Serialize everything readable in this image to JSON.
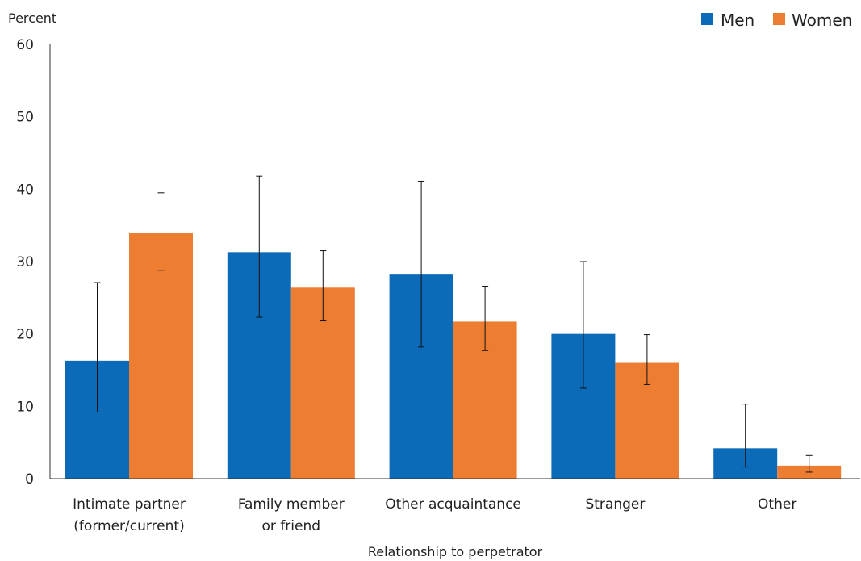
{
  "chart_data": {
    "type": "bar",
    "ylabel": "Percent",
    "xlabel": "Relationship to perpetrator",
    "ylim": [
      0,
      60
    ],
    "yticks": [
      0,
      10,
      20,
      30,
      40,
      50,
      60
    ],
    "grid": false,
    "legend_position": "top-right",
    "categories": [
      [
        "Intimate partner",
        "(former/current)"
      ],
      [
        "Family member",
        "or friend"
      ],
      [
        "Other acquaintance"
      ],
      [
        "Stranger"
      ],
      [
        "Other"
      ]
    ],
    "series": [
      {
        "name": "Men",
        "color": "#0c6bb8",
        "values": [
          16.3,
          31.3,
          28.2,
          20.0,
          4.2
        ],
        "error_low": [
          9.2,
          22.3,
          18.2,
          12.5,
          1.6
        ],
        "error_high": [
          27.1,
          41.8,
          41.1,
          30.0,
          10.3
        ]
      },
      {
        "name": "Women",
        "color": "#ed7d31",
        "values": [
          33.9,
          26.4,
          21.7,
          16.0,
          1.8
        ],
        "error_low": [
          28.8,
          21.8,
          17.7,
          13.0,
          0.9
        ],
        "error_high": [
          39.5,
          31.5,
          26.6,
          19.9,
          3.2
        ]
      }
    ]
  }
}
